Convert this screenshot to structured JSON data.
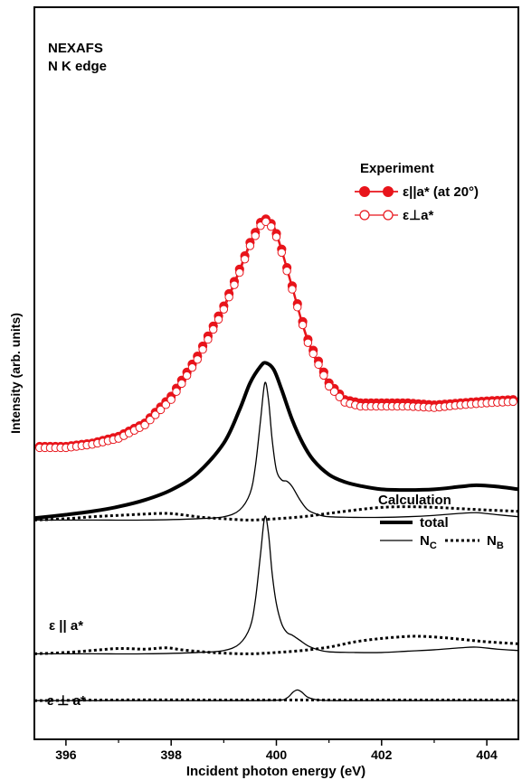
{
  "chart_data": {
    "type": "line",
    "title": "",
    "xlabel": "Incident photon energy (eV)",
    "ylabel": "Intensity (arb. units)",
    "xlim": [
      395.4,
      404.6
    ],
    "xticks": [
      396,
      398,
      400,
      402,
      404
    ],
    "yticks": [],
    "grid": false,
    "annotations": {
      "panel_title_line1": "NEXAFS",
      "panel_title_line2": "N K edge",
      "experiment_header": "Experiment",
      "calculation_header": "Calculation",
      "label_parallel": "ε || a*",
      "label_perp": "ε ⊥ a*"
    },
    "legend": {
      "experiment": [
        {
          "name": "ε||a* (at 20°)",
          "marker": "filled-circle",
          "color": "#e8141b"
        },
        {
          "name": "ε⊥a*",
          "marker": "open-circle",
          "color": "#e8141b"
        }
      ],
      "calculation": {
        "total": "total",
        "nc_main": "N",
        "nc_sub": "C",
        "nb_main": "N",
        "nb_sub": "B"
      }
    },
    "colors": {
      "experiment": "#e8141b",
      "calculation": "#000000"
    },
    "series": [
      {
        "key": "exp_parallel",
        "group": "experiment",
        "offset": 4.0,
        "x": [
          395.5,
          396.0,
          396.5,
          397.0,
          397.5,
          398.0,
          398.5,
          399.0,
          399.3,
          399.5,
          399.7,
          399.8,
          399.95,
          400.1,
          400.3,
          400.6,
          401.0,
          401.3,
          401.6,
          402.0,
          402.5,
          403.0,
          403.5,
          404.0,
          404.5
        ],
        "y": [
          0.0,
          0.0,
          0.05,
          0.15,
          0.35,
          0.75,
          1.35,
          2.1,
          2.65,
          3.05,
          3.35,
          3.4,
          3.3,
          2.95,
          2.4,
          1.6,
          0.95,
          0.7,
          0.65,
          0.65,
          0.65,
          0.62,
          0.65,
          0.68,
          0.7
        ]
      },
      {
        "key": "exp_perp",
        "group": "experiment",
        "offset": 4.0,
        "x": [
          395.5,
          396.0,
          396.5,
          397.0,
          397.5,
          398.0,
          398.5,
          399.0,
          399.3,
          399.5,
          399.7,
          399.8,
          399.95,
          400.1,
          400.3,
          400.6,
          401.0,
          401.3,
          401.6,
          402.0,
          402.5,
          403.0,
          403.5,
          404.0,
          404.5
        ],
        "y": [
          -0.02,
          -0.02,
          0.03,
          0.12,
          0.32,
          0.7,
          1.3,
          2.05,
          2.6,
          3.0,
          3.3,
          3.36,
          3.25,
          2.9,
          2.35,
          1.55,
          0.9,
          0.66,
          0.6,
          0.6,
          0.6,
          0.58,
          0.62,
          0.65,
          0.67
        ]
      },
      {
        "key": "calc_par_total",
        "group": "calc-parallel",
        "style": "thick",
        "offset": 2.9,
        "x": [
          395.4,
          396.0,
          396.5,
          397.0,
          397.5,
          398.0,
          398.5,
          399.0,
          399.3,
          399.5,
          399.7,
          399.8,
          399.95,
          400.1,
          400.3,
          400.5,
          400.7,
          401.0,
          401.3,
          401.6,
          402.0,
          402.5,
          403.0,
          403.5,
          403.8,
          404.2,
          404.6
        ],
        "y": [
          0.03,
          0.08,
          0.13,
          0.2,
          0.3,
          0.45,
          0.7,
          1.15,
          1.65,
          2.05,
          2.3,
          2.35,
          2.25,
          1.95,
          1.5,
          1.15,
          0.9,
          0.68,
          0.57,
          0.51,
          0.46,
          0.45,
          0.46,
          0.5,
          0.52,
          0.5,
          0.46
        ]
      },
      {
        "key": "calc_par_nc",
        "group": "calc-parallel",
        "style": "thin",
        "offset": 2.9,
        "x": [
          395.4,
          396.5,
          397.5,
          398.5,
          399.0,
          399.3,
          399.5,
          399.6,
          399.7,
          399.78,
          399.85,
          399.92,
          400.0,
          400.1,
          400.2,
          400.3,
          400.45,
          400.6,
          400.8,
          401.0,
          401.5,
          402.0,
          402.5,
          403.0,
          403.5,
          403.8,
          404.2,
          404.6
        ],
        "y": [
          0.0,
          0.0,
          0.0,
          0.02,
          0.05,
          0.15,
          0.4,
          0.8,
          1.5,
          2.05,
          1.8,
          1.2,
          0.75,
          0.6,
          0.58,
          0.5,
          0.3,
          0.15,
          0.08,
          0.05,
          0.04,
          0.04,
          0.05,
          0.07,
          0.1,
          0.11,
          0.08,
          0.05
        ]
      },
      {
        "key": "calc_par_nb",
        "group": "calc-parallel",
        "style": "dotted",
        "offset": 2.9,
        "x": [
          395.4,
          396.0,
          396.5,
          397.0,
          397.5,
          397.9,
          398.2,
          398.6,
          399.0,
          399.5,
          400.0,
          400.5,
          401.0,
          401.5,
          402.0,
          402.5,
          403.0,
          403.5,
          404.0,
          404.6
        ],
        "y": [
          0.0,
          0.02,
          0.05,
          0.07,
          0.09,
          0.1,
          0.08,
          0.04,
          0.02,
          0.0,
          0.02,
          0.05,
          0.1,
          0.15,
          0.19,
          0.2,
          0.19,
          0.17,
          0.15,
          0.13
        ]
      },
      {
        "key": "calc_parallel_nc",
        "group": "calc-parallel2",
        "style": "thin",
        "offset": 0.9,
        "x": [
          395.4,
          396.5,
          397.5,
          398.5,
          399.0,
          399.3,
          399.5,
          399.6,
          399.7,
          399.78,
          399.85,
          399.92,
          400.0,
          400.1,
          400.2,
          400.3,
          400.45,
          400.6,
          400.8,
          401.0,
          401.5,
          402.0,
          402.5,
          403.0,
          403.5,
          403.8,
          404.2,
          404.6
        ],
        "y": [
          0.0,
          0.0,
          0.0,
          0.02,
          0.05,
          0.15,
          0.4,
          0.8,
          1.5,
          2.05,
          1.8,
          1.2,
          0.75,
          0.45,
          0.32,
          0.28,
          0.2,
          0.12,
          0.06,
          0.03,
          0.02,
          0.02,
          0.04,
          0.06,
          0.09,
          0.1,
          0.07,
          0.05
        ]
      },
      {
        "key": "calc_parallel_nb",
        "group": "calc-parallel2",
        "style": "dotted",
        "offset": 0.9,
        "x": [
          395.4,
          396.0,
          396.5,
          397.0,
          397.5,
          397.9,
          398.2,
          398.6,
          399.0,
          399.5,
          400.0,
          400.5,
          401.0,
          401.5,
          402.0,
          402.5,
          402.8,
          403.2,
          403.6,
          404.0,
          404.6
        ],
        "y": [
          0.0,
          0.02,
          0.05,
          0.08,
          0.07,
          0.09,
          0.06,
          0.03,
          0.01,
          0.0,
          0.02,
          0.05,
          0.1,
          0.18,
          0.23,
          0.26,
          0.26,
          0.24,
          0.21,
          0.18,
          0.15
        ]
      },
      {
        "key": "calc_perp_nc",
        "group": "calc-perp",
        "style": "thin",
        "offset": 0.2,
        "x": [
          395.4,
          397.0,
          399.0,
          400.0,
          400.2,
          400.32,
          400.4,
          400.48,
          400.6,
          400.8,
          401.2,
          402.0,
          403.0,
          404.6
        ],
        "y": [
          0.0,
          0.0,
          0.0,
          0.005,
          0.04,
          0.13,
          0.16,
          0.13,
          0.05,
          0.01,
          0.0,
          0.0,
          0.0,
          0.0
        ]
      },
      {
        "key": "calc_perp_nb",
        "group": "calc-perp",
        "style": "dotted",
        "offset": 0.2,
        "x": [
          395.4,
          397.0,
          399.0,
          400.0,
          401.0,
          402.0,
          403.0,
          404.6
        ],
        "y": [
          0.0,
          0.01,
          0.01,
          0.01,
          0.01,
          0.01,
          0.01,
          0.01
        ]
      }
    ]
  }
}
